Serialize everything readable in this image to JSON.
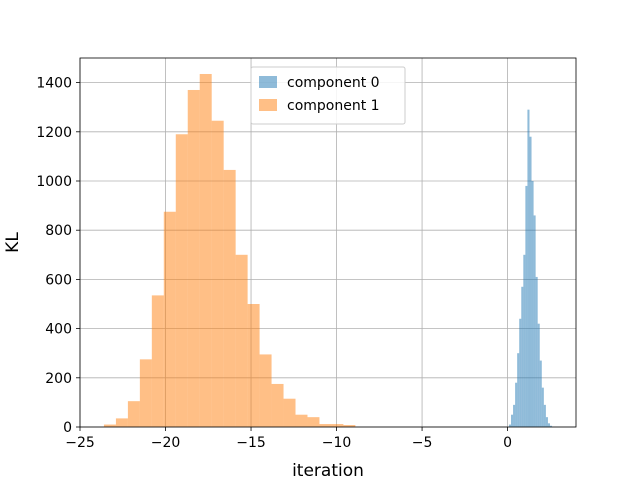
{
  "chart_data": {
    "type": "histogram",
    "xlabel": "iteration",
    "ylabel": "KL",
    "xlim": [
      -25,
      4
    ],
    "ylim": [
      0,
      1500
    ],
    "x_ticks": [
      -25,
      -20,
      -15,
      -10,
      -5,
      0
    ],
    "x_tick_labels": [
      "−25",
      "−20",
      "−15",
      "−10",
      "−5",
      "0"
    ],
    "y_ticks": [
      0,
      200,
      400,
      600,
      800,
      1000,
      1200,
      1400
    ],
    "y_tick_labels": [
      "0",
      "200",
      "400",
      "600",
      "800",
      "1000",
      "1200",
      "1400"
    ],
    "grid": true,
    "legend_position": "upper center",
    "series": [
      {
        "name": "component 0",
        "color": "#1f77b4",
        "alpha": 0.5,
        "bins": [
          {
            "x0": 0.08,
            "x1": 0.2,
            "count": 10
          },
          {
            "x0": 0.2,
            "x1": 0.32,
            "count": 50
          },
          {
            "x0": 0.32,
            "x1": 0.44,
            "count": 90
          },
          {
            "x0": 0.44,
            "x1": 0.56,
            "count": 180
          },
          {
            "x0": 0.56,
            "x1": 0.68,
            "count": 300
          },
          {
            "x0": 0.68,
            "x1": 0.8,
            "count": 440
          },
          {
            "x0": 0.8,
            "x1": 0.92,
            "count": 570
          },
          {
            "x0": 0.92,
            "x1": 1.04,
            "count": 700
          },
          {
            "x0": 1.04,
            "x1": 1.16,
            "count": 980
          },
          {
            "x0": 1.16,
            "x1": 1.28,
            "count": 1290
          },
          {
            "x0": 1.28,
            "x1": 1.4,
            "count": 1180
          },
          {
            "x0": 1.4,
            "x1": 1.52,
            "count": 1000
          },
          {
            "x0": 1.52,
            "x1": 1.64,
            "count": 860
          },
          {
            "x0": 1.64,
            "x1": 1.76,
            "count": 610
          },
          {
            "x0": 1.76,
            "x1": 1.88,
            "count": 420
          },
          {
            "x0": 1.88,
            "x1": 2.0,
            "count": 270
          },
          {
            "x0": 2.0,
            "x1": 2.12,
            "count": 160
          },
          {
            "x0": 2.12,
            "x1": 2.24,
            "count": 90
          },
          {
            "x0": 2.24,
            "x1": 2.36,
            "count": 40
          },
          {
            "x0": 2.36,
            "x1": 2.48,
            "count": 15
          },
          {
            "x0": 2.48,
            "x1": 2.6,
            "count": 5
          }
        ]
      },
      {
        "name": "component 1",
        "color": "#ff7f0e",
        "alpha": 0.5,
        "bins": [
          {
            "x0": -23.6,
            "x1": -22.9,
            "count": 10
          },
          {
            "x0": -22.9,
            "x1": -22.2,
            "count": 35
          },
          {
            "x0": -22.2,
            "x1": -21.5,
            "count": 105
          },
          {
            "x0": -21.5,
            "x1": -20.8,
            "count": 275
          },
          {
            "x0": -20.8,
            "x1": -20.1,
            "count": 535
          },
          {
            "x0": -20.1,
            "x1": -19.4,
            "count": 875
          },
          {
            "x0": -19.4,
            "x1": -18.7,
            "count": 1190
          },
          {
            "x0": -18.7,
            "x1": -18.0,
            "count": 1370
          },
          {
            "x0": -18.0,
            "x1": -17.3,
            "count": 1435
          },
          {
            "x0": -17.3,
            "x1": -16.6,
            "count": 1245
          },
          {
            "x0": -16.6,
            "x1": -15.9,
            "count": 1045
          },
          {
            "x0": -15.9,
            "x1": -15.2,
            "count": 700
          },
          {
            "x0": -15.2,
            "x1": -14.5,
            "count": 500
          },
          {
            "x0": -14.5,
            "x1": -13.8,
            "count": 295
          },
          {
            "x0": -13.8,
            "x1": -13.1,
            "count": 175
          },
          {
            "x0": -13.1,
            "x1": -12.4,
            "count": 115
          },
          {
            "x0": -12.4,
            "x1": -11.7,
            "count": 50
          },
          {
            "x0": -11.7,
            "x1": -11.0,
            "count": 40
          },
          {
            "x0": -11.0,
            "x1": -10.3,
            "count": 12
          },
          {
            "x0": -10.3,
            "x1": -9.6,
            "count": 12
          },
          {
            "x0": -9.6,
            "x1": -8.9,
            "count": 8
          }
        ]
      }
    ]
  }
}
